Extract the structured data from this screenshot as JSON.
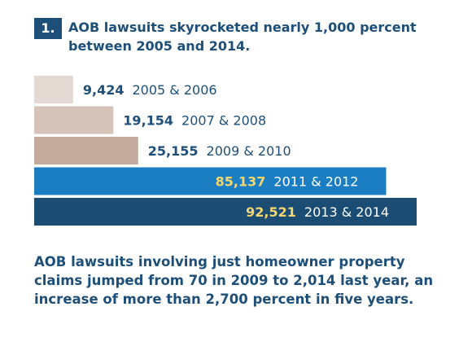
{
  "header": {
    "number": "1.",
    "headline": "AOB lawsuits skyrocketed nearly 1,000 percent between 2005 and 2014."
  },
  "chart_data": {
    "type": "bar",
    "orientation": "horizontal",
    "title": "",
    "categories": [
      "2005 & 2006",
      "2007 & 2008",
      "2009 & 2010",
      "2011 & 2012",
      "2013 & 2014"
    ],
    "values": [
      9424,
      19154,
      25155,
      85137,
      92521
    ],
    "value_labels": [
      "9,424",
      "19,154",
      "25,155",
      "85,137",
      "92,521"
    ],
    "bar_colors": [
      "#e4d8d2",
      "#d5c2b8",
      "#c4aa9c",
      "#1b7ec2",
      "#1b4d74"
    ],
    "value_label_colors": [
      "#1d4f78",
      "#1d4f78",
      "#1d4f78",
      "#f5d76e",
      "#f5d76e"
    ],
    "category_label_colors": [
      "#1d4f78",
      "#1d4f78",
      "#1d4f78",
      "#ffffff",
      "#ffffff"
    ],
    "grid": false,
    "legend": "none"
  },
  "footer": {
    "text": "AOB lawsuits involving just homeowner property claims jumped from 70 in 2009 to 2,014 last year, an increase of more than 2,700 percent in five years."
  }
}
